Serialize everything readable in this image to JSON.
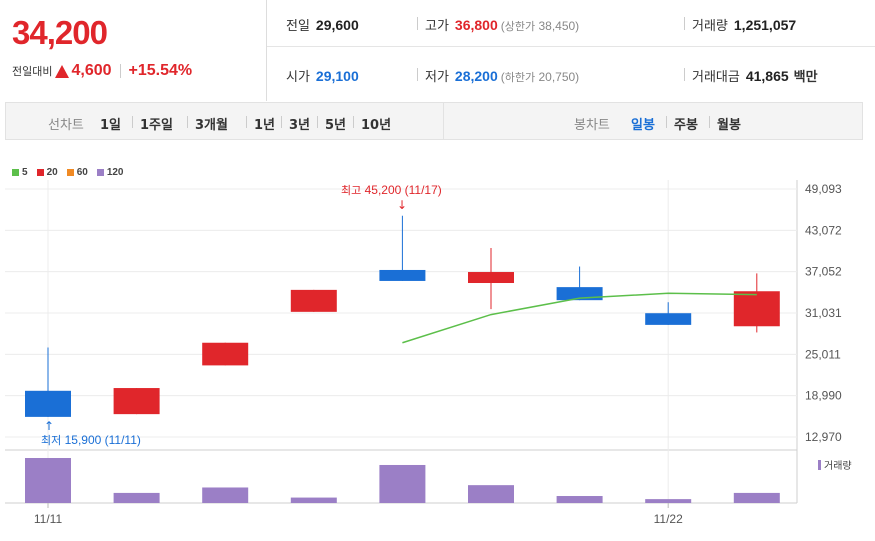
{
  "price": {
    "current": "34,200",
    "change_label": "전일대비",
    "change_value": "4,600",
    "change_pct": "+15.54%"
  },
  "stats": {
    "prev_close": {
      "label": "전일",
      "value": "29,600"
    },
    "open": {
      "label": "시가",
      "value": "29,100"
    },
    "high": {
      "label": "고가",
      "value": "36,800",
      "note_label": "상한가",
      "note_value": "38,450"
    },
    "low": {
      "label": "저가",
      "value": "28,200",
      "note_label": "하한가",
      "note_value": "20,750"
    },
    "volume": {
      "label": "거래량",
      "value": "1,251,057"
    },
    "amount": {
      "label": "거래대금",
      "value": "41,865",
      "unit": "백만"
    }
  },
  "tabs": {
    "line_label": "선차트",
    "periods": [
      "1일",
      "1주일",
      "3개월",
      "1년",
      "3년",
      "5년",
      "10년"
    ],
    "candle_label": "봉차트",
    "candle_types": [
      "일봉",
      "주봉",
      "월봉"
    ],
    "active_candle": "일봉"
  },
  "colors": {
    "up": "#e0262b",
    "down": "#1a6fd6",
    "ma5": "#5cbf4a",
    "ma20": "#e0262b",
    "ma60": "#f08a24",
    "ma120": "#9b7fc6",
    "volume": "#9b7fc6"
  },
  "chart_data": {
    "type": "candlestick",
    "legend": [
      {
        "name": "5",
        "color": "#5cbf4a"
      },
      {
        "name": "20",
        "color": "#e0262b"
      },
      {
        "name": "60",
        "color": "#f08a24"
      },
      {
        "name": "120",
        "color": "#9b7fc6"
      }
    ],
    "y_ticks": [
      "49,093",
      "43,072",
      "37,052",
      "31,031",
      "25,011",
      "18,990",
      "12,970"
    ],
    "y_tick_values": [
      49093,
      43072,
      37052,
      31031,
      25011,
      18990,
      12970
    ],
    "ylim": [
      12500,
      51000
    ],
    "x_ticks": [
      {
        "index": 0,
        "label": "11/11"
      },
      {
        "index": 7,
        "label": "11/22"
      }
    ],
    "candles": [
      {
        "open": 19700,
        "close": 15900,
        "high": 26000,
        "low": 15900
      },
      {
        "open": 16300,
        "close": 20100,
        "high": 20100,
        "low": 16300
      },
      {
        "open": 23400,
        "close": 26700,
        "high": 26700,
        "low": 23400
      },
      {
        "open": 31200,
        "close": 34400,
        "high": 34400,
        "low": 31200
      },
      {
        "open": 37300,
        "close": 35700,
        "high": 45200,
        "low": 35700
      },
      {
        "open": 35400,
        "close": 37000,
        "high": 40500,
        "low": 31600
      },
      {
        "open": 34800,
        "close": 32900,
        "high": 37800,
        "low": 32900
      },
      {
        "open": 31000,
        "close": 29300,
        "high": 32600,
        "low": 29300
      },
      {
        "open": 29100,
        "close": 34200,
        "high": 36800,
        "low": 28200
      }
    ],
    "ma5": [
      null,
      null,
      null,
      null,
      26700,
      30800,
      33200,
      33900,
      33700
    ],
    "volume_label": "거래량",
    "volume": [
      2.9,
      0.65,
      1.0,
      0.35,
      2.45,
      1.15,
      0.45,
      0.25,
      0.65
    ],
    "annotations": {
      "high": {
        "label": "최고",
        "value": "45,200",
        "date": "(11/17)",
        "index": 4
      },
      "low": {
        "label": "최저",
        "value": "15,900",
        "date": "(11/11)",
        "index": 0
      }
    }
  }
}
